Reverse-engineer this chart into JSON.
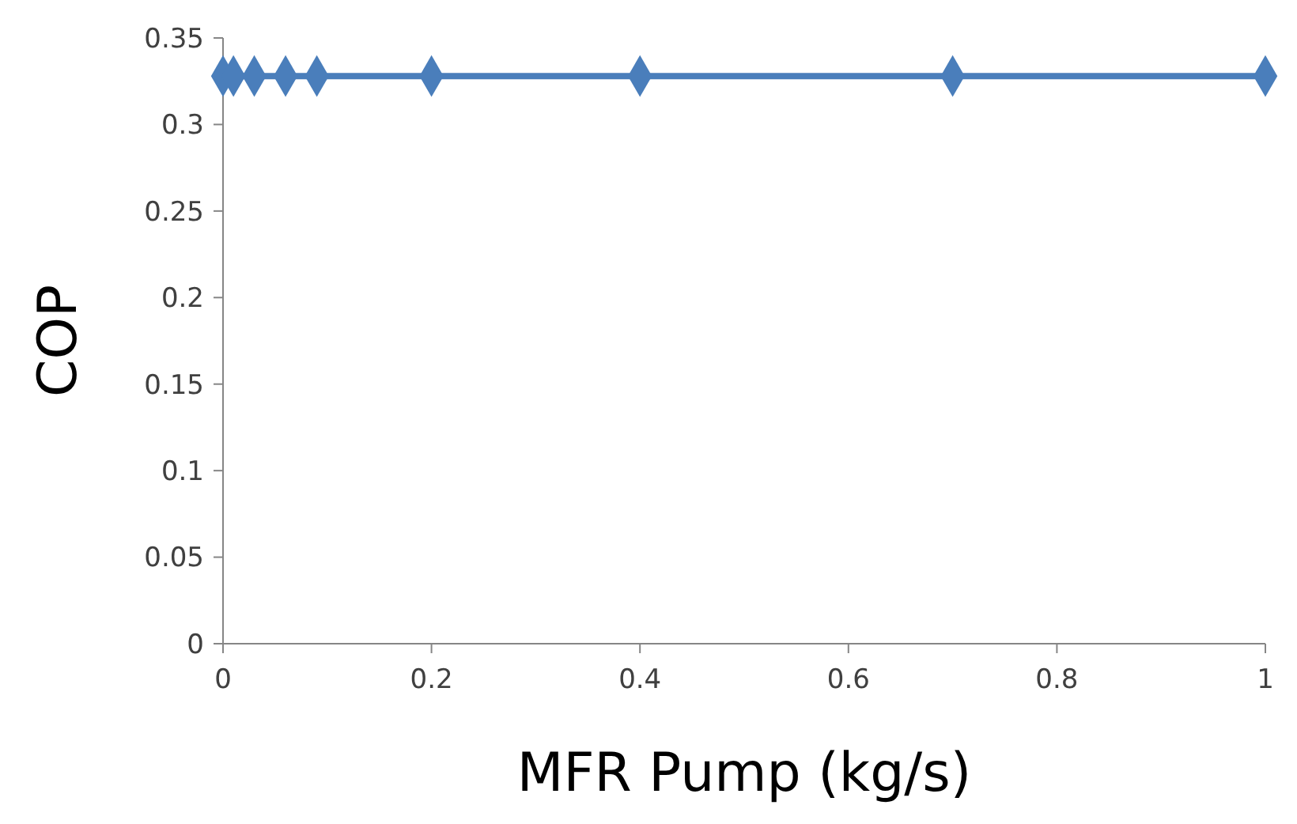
{
  "chart_data": {
    "type": "line",
    "xlabel": "MFR Pump (kg/s)",
    "ylabel": "COP",
    "x": [
      0,
      0.01,
      0.03,
      0.06,
      0.09,
      0.2,
      0.4,
      0.7,
      1
    ],
    "series": [
      {
        "color": "#4a7ebb",
        "values": [
          0.328,
          0.328,
          0.328,
          0.328,
          0.328,
          0.328,
          0.328,
          0.328,
          0.328
        ]
      }
    ],
    "xlim": [
      0,
      1
    ],
    "xticks": [
      0,
      0.2,
      0.4,
      0.6,
      0.8,
      1
    ],
    "ylim": [
      0,
      0.35
    ],
    "yticks": [
      0,
      0.05,
      0.1,
      0.15,
      0.2,
      0.25,
      0.3,
      0.35
    ],
    "grid": false,
    "marker": "diamond",
    "line_style": "solid"
  }
}
